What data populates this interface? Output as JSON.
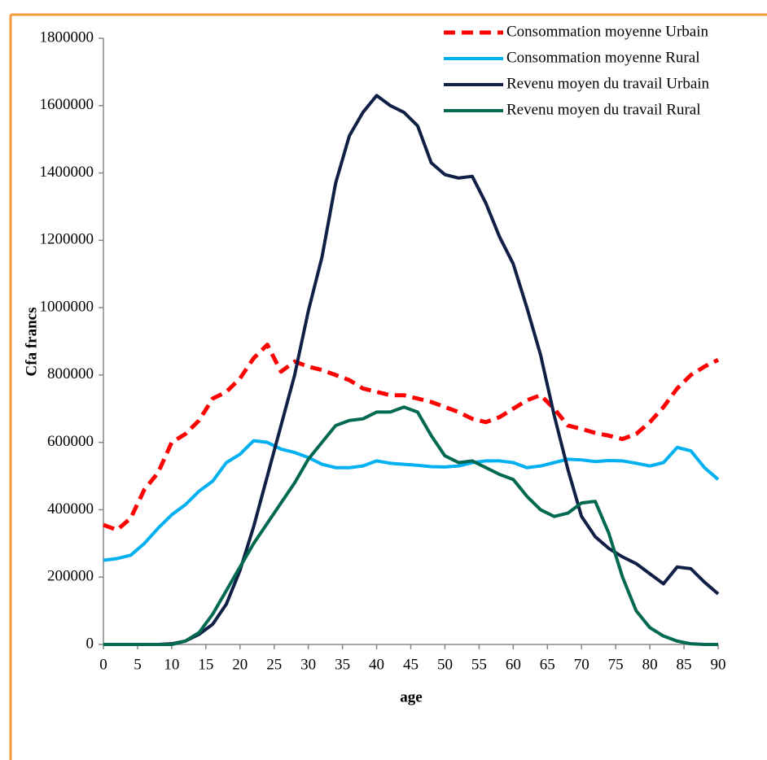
{
  "chart_data": {
    "type": "line",
    "ylabel": "Cfa francs",
    "xlabel": "age",
    "x": [
      0,
      2,
      4,
      6,
      8,
      10,
      12,
      14,
      16,
      18,
      20,
      22,
      24,
      26,
      28,
      30,
      32,
      34,
      36,
      38,
      40,
      42,
      44,
      46,
      48,
      50,
      52,
      54,
      56,
      58,
      60,
      62,
      64,
      66,
      68,
      70,
      72,
      74,
      76,
      78,
      80,
      82,
      84,
      86,
      88,
      90
    ],
    "series": [
      {
        "name": "Consommation moyenne Urbain",
        "color": "#ff0000",
        "dashed": true,
        "values": [
          355000,
          340000,
          375000,
          460000,
          510000,
          600000,
          625000,
          665000,
          730000,
          750000,
          790000,
          850000,
          890000,
          810000,
          840000,
          825000,
          815000,
          800000,
          785000,
          760000,
          750000,
          740000,
          740000,
          730000,
          720000,
          705000,
          690000,
          670000,
          660000,
          675000,
          700000,
          725000,
          740000,
          700000,
          650000,
          640000,
          628000,
          620000,
          610000,
          625000,
          660000,
          705000,
          760000,
          800000,
          825000,
          845000
        ]
      },
      {
        "name": "Consommation moyenne Rural",
        "color": "#00b0f0",
        "dashed": false,
        "values": [
          250000,
          255000,
          265000,
          300000,
          345000,
          385000,
          415000,
          455000,
          485000,
          540000,
          565000,
          605000,
          600000,
          580000,
          570000,
          555000,
          535000,
          525000,
          525000,
          530000,
          545000,
          538000,
          535000,
          532000,
          528000,
          527000,
          530000,
          540000,
          545000,
          545000,
          540000,
          525000,
          530000,
          540000,
          550000,
          548000,
          543000,
          546000,
          545000,
          538000,
          530000,
          540000,
          585000,
          575000,
          525000,
          490000
        ]
      },
      {
        "name": "Revenu moyen du travail Urbain",
        "color": "#0f1f45",
        "dashed": false,
        "values": [
          0,
          0,
          0,
          0,
          0,
          2000,
          10000,
          30000,
          60000,
          120000,
          220000,
          350000,
          500000,
          650000,
          800000,
          990000,
          1150000,
          1370000,
          1510000,
          1580000,
          1630000,
          1600000,
          1580000,
          1540000,
          1430000,
          1395000,
          1385000,
          1390000,
          1310000,
          1210000,
          1130000,
          1000000,
          860000,
          680000,
          520000,
          380000,
          320000,
          285000,
          260000,
          240000,
          210000,
          180000,
          230000,
          225000,
          185000,
          150000
        ]
      },
      {
        "name": "Revenu moyen du travail Rural",
        "color": "#006950",
        "dashed": false,
        "values": [
          0,
          0,
          0,
          0,
          0,
          0,
          10000,
          35000,
          90000,
          160000,
          230000,
          300000,
          360000,
          420000,
          480000,
          550000,
          600000,
          650000,
          665000,
          670000,
          690000,
          690000,
          705000,
          690000,
          620000,
          560000,
          540000,
          545000,
          525000,
          505000,
          490000,
          440000,
          400000,
          380000,
          390000,
          420000,
          425000,
          330000,
          200000,
          100000,
          50000,
          25000,
          10000,
          2000,
          0,
          0
        ]
      }
    ],
    "xlim": [
      0,
      90
    ],
    "xticks": [
      0,
      5,
      10,
      15,
      20,
      25,
      30,
      35,
      40,
      45,
      50,
      55,
      60,
      65,
      70,
      75,
      80,
      85,
      90
    ],
    "ylim": [
      0,
      1800000
    ],
    "yticks": [
      0,
      200000,
      400000,
      600000,
      800000,
      1000000,
      1200000,
      1400000,
      1600000,
      1800000
    ],
    "legend": "upper right"
  }
}
